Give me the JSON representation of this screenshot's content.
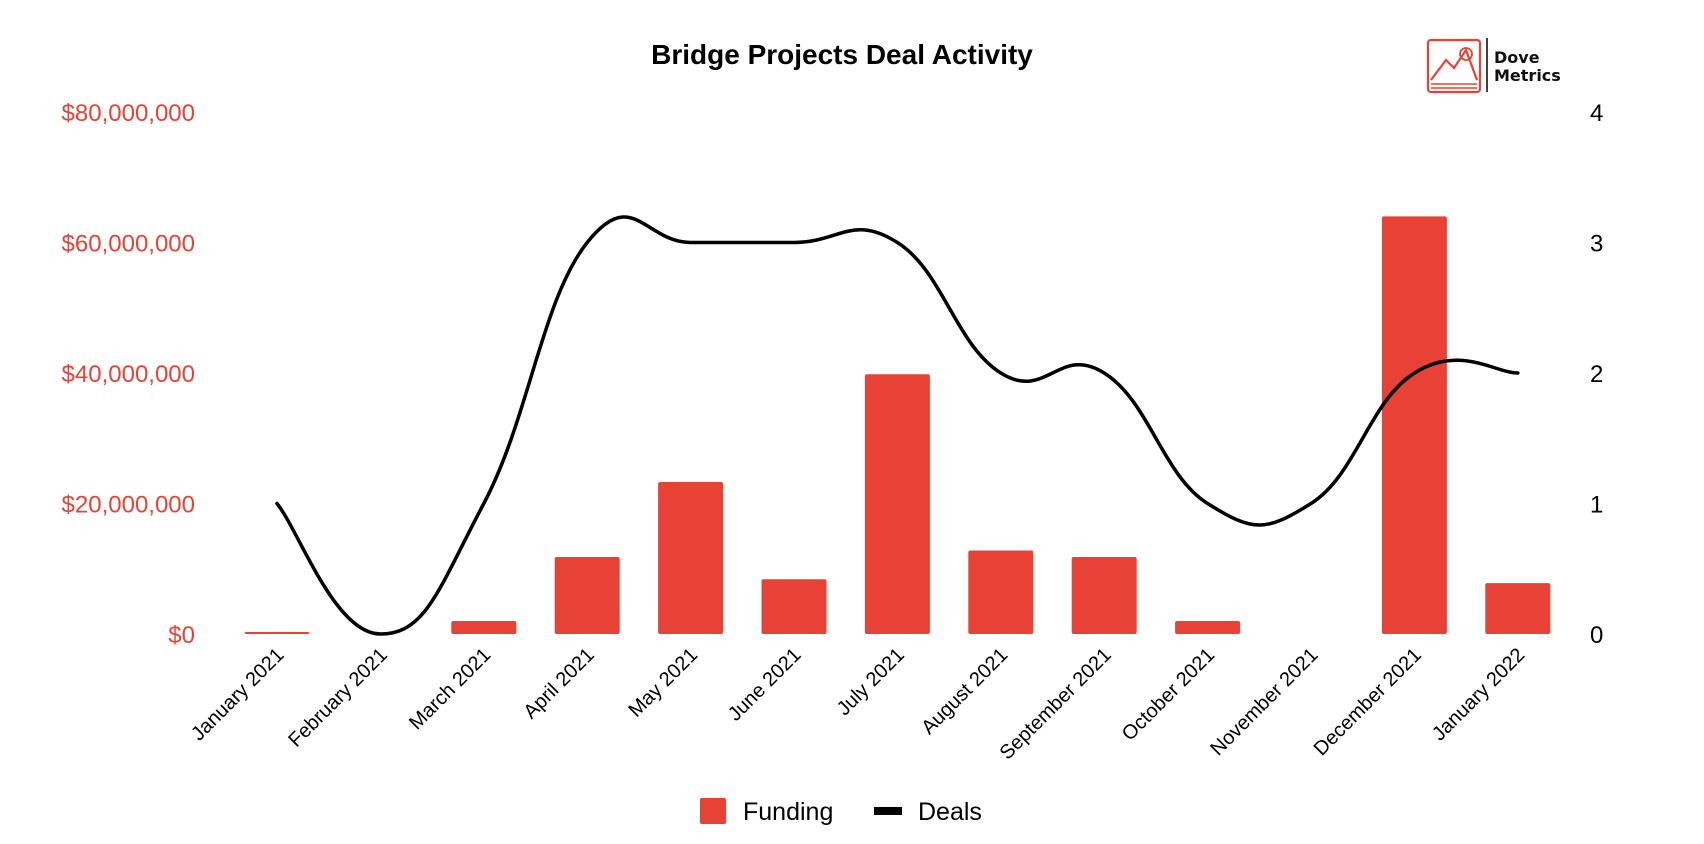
{
  "logo": {
    "line1": "Dove",
    "line2": "Metrics",
    "accent_color": "#e84236"
  },
  "chart_data": {
    "type": "bar",
    "title": "Bridge Projects Deal Activity",
    "categories": [
      "January 2021",
      "February 2021",
      "March 2021",
      "April 2021",
      "May 2021",
      "June 2021",
      "July 2021",
      "August 2021",
      "September 2021",
      "October 2021",
      "November 2021",
      "December 2021",
      "January 2022"
    ],
    "series": [
      {
        "name": "Funding",
        "type": "bar",
        "axis": "left",
        "color": "#e84236",
        "values": [
          300000,
          0,
          2000000,
          11800000,
          23300000,
          8400000,
          39800000,
          12800000,
          11800000,
          2000000,
          0,
          64000000,
          7800000
        ]
      },
      {
        "name": "Deals",
        "type": "line",
        "axis": "right",
        "color": "#000000",
        "values": [
          1,
          0,
          1,
          3,
          3,
          3,
          3,
          2,
          2,
          1,
          1,
          2,
          2
        ]
      }
    ],
    "y_left": {
      "ylim": [
        0,
        80000000
      ],
      "ticks": [
        "$0",
        "$20,000,000",
        "$40,000,000",
        "$60,000,000",
        "$80,000,000"
      ]
    },
    "y_right": {
      "ylim": [
        0,
        4
      ],
      "ticks": [
        "0",
        "1",
        "2",
        "3",
        "4"
      ]
    },
    "grid": false,
    "legend_position": "bottom-center"
  }
}
